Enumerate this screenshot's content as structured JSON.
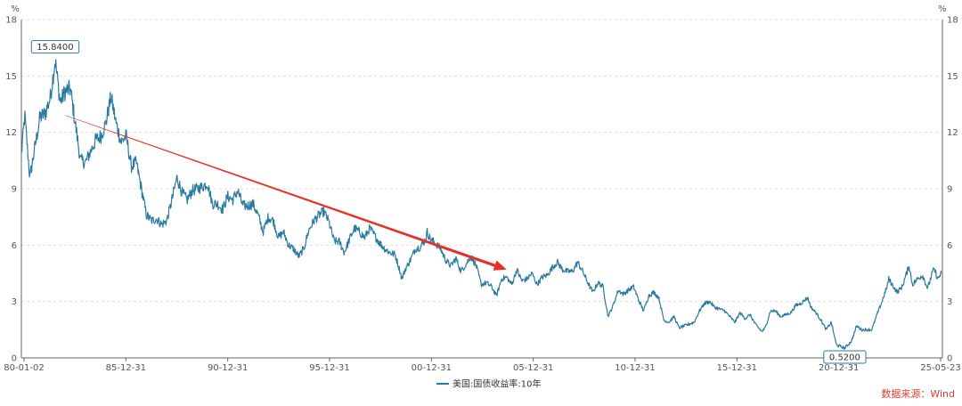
{
  "colors": {
    "series": "#2a7aa0",
    "arrow": "#e8302a",
    "grid": "#d9d9d9",
    "axis": "#666666",
    "source": "#e23b2e"
  },
  "chart_data": {
    "type": "line",
    "ylabel_left": "%",
    "ylabel_right": "%",
    "ylim": [
      0,
      18
    ],
    "y_ticks": [
      "0",
      "3",
      "6",
      "9",
      "12",
      "15",
      "18"
    ],
    "x_ticks": [
      "80-01-02",
      "85-12-31",
      "90-12-31",
      "95-12-31",
      "00-12-31",
      "05-12-31",
      "10-12-31",
      "15-12-31",
      "20-12-31",
      "25-05-23"
    ],
    "grid": true,
    "legend_position": "bottom",
    "annotations": [
      {
        "label": "15.8400",
        "x": "1981-09",
        "y": 15.84
      },
      {
        "label": "0.5200",
        "x": "2020-08",
        "y": 0.52
      }
    ],
    "trend_arrow": {
      "from": {
        "x": "1982-03",
        "y": 12.9
      },
      "to": {
        "x": "2003-12",
        "y": 4.7
      }
    },
    "series": [
      {
        "name": "美国:国债收益率:10年",
        "points": [
          [
            "1980-01",
            10.8
          ],
          [
            "1980-03",
            12.9
          ],
          [
            "1980-06",
            9.6
          ],
          [
            "1980-09",
            11.2
          ],
          [
            "1980-12",
            12.8
          ],
          [
            "1981-03",
            13.0
          ],
          [
            "1981-06",
            13.8
          ],
          [
            "1981-09",
            15.84
          ],
          [
            "1981-12",
            13.6
          ],
          [
            "1982-03",
            14.2
          ],
          [
            "1982-06",
            14.3
          ],
          [
            "1982-09",
            12.4
          ],
          [
            "1982-12",
            10.5
          ],
          [
            "1983-03",
            10.4
          ],
          [
            "1983-06",
            11.0
          ],
          [
            "1983-09",
            11.6
          ],
          [
            "1983-12",
            11.8
          ],
          [
            "1984-03",
            12.5
          ],
          [
            "1984-06",
            13.9
          ],
          [
            "1984-09",
            12.5
          ],
          [
            "1984-12",
            11.5
          ],
          [
            "1985-03",
            11.8
          ],
          [
            "1985-06",
            10.2
          ],
          [
            "1985-09",
            10.4
          ],
          [
            "1985-12",
            9.0
          ],
          [
            "1986-03",
            7.6
          ],
          [
            "1986-06",
            7.3
          ],
          [
            "1986-09",
            7.4
          ],
          [
            "1986-12",
            7.1
          ],
          [
            "1987-03",
            7.3
          ],
          [
            "1987-06",
            8.4
          ],
          [
            "1987-09",
            9.6
          ],
          [
            "1987-12",
            8.8
          ],
          [
            "1988-03",
            8.4
          ],
          [
            "1988-06",
            8.9
          ],
          [
            "1988-09",
            9.0
          ],
          [
            "1988-12",
            9.1
          ],
          [
            "1989-03",
            9.3
          ],
          [
            "1989-06",
            8.2
          ],
          [
            "1989-09",
            8.2
          ],
          [
            "1989-12",
            7.9
          ],
          [
            "1990-03",
            8.6
          ],
          [
            "1990-06",
            8.4
          ],
          [
            "1990-09",
            8.9
          ],
          [
            "1990-12",
            8.1
          ],
          [
            "1991-03",
            8.1
          ],
          [
            "1991-06",
            8.2
          ],
          [
            "1991-09",
            7.6
          ],
          [
            "1991-12",
            6.7
          ],
          [
            "1992-03",
            7.5
          ],
          [
            "1992-06",
            7.3
          ],
          [
            "1992-09",
            6.4
          ],
          [
            "1992-12",
            6.7
          ],
          [
            "1993-03",
            6.0
          ],
          [
            "1993-06",
            5.8
          ],
          [
            "1993-09",
            5.4
          ],
          [
            "1993-12",
            5.8
          ],
          [
            "1994-03",
            6.8
          ],
          [
            "1994-06",
            7.3
          ],
          [
            "1994-09",
            7.6
          ],
          [
            "1994-12",
            7.8
          ],
          [
            "1995-03",
            7.2
          ],
          [
            "1995-06",
            6.2
          ],
          [
            "1995-09",
            6.2
          ],
          [
            "1995-12",
            5.6
          ],
          [
            "1996-03",
            6.3
          ],
          [
            "1996-06",
            6.9
          ],
          [
            "1996-09",
            6.7
          ],
          [
            "1996-12",
            6.4
          ],
          [
            "1997-03",
            6.9
          ],
          [
            "1997-06",
            6.5
          ],
          [
            "1997-09",
            6.1
          ],
          [
            "1997-12",
            5.8
          ],
          [
            "1998-03",
            5.6
          ],
          [
            "1998-06",
            5.5
          ],
          [
            "1998-09",
            4.6
          ],
          [
            "1998-10",
            4.2
          ],
          [
            "1998-12",
            4.7
          ],
          [
            "1999-03",
            5.2
          ],
          [
            "1999-06",
            5.8
          ],
          [
            "1999-09",
            5.9
          ],
          [
            "1999-12",
            6.3
          ],
          [
            "2000-01",
            6.7
          ],
          [
            "2000-03",
            6.3
          ],
          [
            "2000-06",
            6.1
          ],
          [
            "2000-09",
            5.8
          ],
          [
            "2000-12",
            5.2
          ],
          [
            "2001-03",
            4.9
          ],
          [
            "2001-06",
            5.3
          ],
          [
            "2001-09",
            4.6
          ],
          [
            "2001-12",
            5.0
          ],
          [
            "2002-03",
            5.4
          ],
          [
            "2002-06",
            4.9
          ],
          [
            "2002-09",
            3.9
          ],
          [
            "2002-12",
            4.0
          ],
          [
            "2003-03",
            3.8
          ],
          [
            "2003-06",
            3.3
          ],
          [
            "2003-09",
            4.2
          ],
          [
            "2003-12",
            4.3
          ],
          [
            "2004-03",
            3.9
          ],
          [
            "2004-06",
            4.7
          ],
          [
            "2004-09",
            4.1
          ],
          [
            "2004-12",
            4.2
          ],
          [
            "2005-03",
            4.5
          ],
          [
            "2005-06",
            3.9
          ],
          [
            "2005-09",
            4.3
          ],
          [
            "2005-12",
            4.4
          ],
          [
            "2006-03",
            4.8
          ],
          [
            "2006-06",
            5.1
          ],
          [
            "2006-09",
            4.7
          ],
          [
            "2006-12",
            4.6
          ],
          [
            "2007-03",
            4.6
          ],
          [
            "2007-06",
            5.1
          ],
          [
            "2007-09",
            4.6
          ],
          [
            "2007-12",
            4.0
          ],
          [
            "2008-03",
            3.5
          ],
          [
            "2008-06",
            4.0
          ],
          [
            "2008-09",
            3.8
          ],
          [
            "2008-12",
            2.2
          ],
          [
            "2009-03",
            2.8
          ],
          [
            "2009-06",
            3.6
          ],
          [
            "2009-09",
            3.4
          ],
          [
            "2009-12",
            3.6
          ],
          [
            "2010-03",
            3.8
          ],
          [
            "2010-06",
            3.1
          ],
          [
            "2010-09",
            2.5
          ],
          [
            "2010-12",
            3.3
          ],
          [
            "2011-03",
            3.5
          ],
          [
            "2011-06",
            3.2
          ],
          [
            "2011-09",
            2.0
          ],
          [
            "2011-12",
            1.9
          ],
          [
            "2012-03",
            2.2
          ],
          [
            "2012-06",
            1.6
          ],
          [
            "2012-09",
            1.7
          ],
          [
            "2012-12",
            1.8
          ],
          [
            "2013-03",
            1.9
          ],
          [
            "2013-06",
            2.5
          ],
          [
            "2013-09",
            2.9
          ],
          [
            "2013-12",
            3.0
          ],
          [
            "2014-03",
            2.7
          ],
          [
            "2014-06",
            2.6
          ],
          [
            "2014-09",
            2.5
          ],
          [
            "2014-12",
            2.2
          ],
          [
            "2015-03",
            1.9
          ],
          [
            "2015-06",
            2.4
          ],
          [
            "2015-09",
            2.1
          ],
          [
            "2015-12",
            2.3
          ],
          [
            "2016-03",
            1.8
          ],
          [
            "2016-07",
            1.4
          ],
          [
            "2016-09",
            1.6
          ],
          [
            "2016-12",
            2.5
          ],
          [
            "2017-03",
            2.5
          ],
          [
            "2017-06",
            2.2
          ],
          [
            "2017-09",
            2.3
          ],
          [
            "2017-12",
            2.4
          ],
          [
            "2018-03",
            2.8
          ],
          [
            "2018-06",
            2.9
          ],
          [
            "2018-10",
            3.2
          ],
          [
            "2018-12",
            2.7
          ],
          [
            "2019-03",
            2.4
          ],
          [
            "2019-06",
            2.0
          ],
          [
            "2019-09",
            1.5
          ],
          [
            "2019-12",
            1.9
          ],
          [
            "2020-03",
            0.7
          ],
          [
            "2020-08",
            0.52
          ],
          [
            "2020-12",
            0.9
          ],
          [
            "2021-03",
            1.7
          ],
          [
            "2021-06",
            1.5
          ],
          [
            "2021-09",
            1.5
          ],
          [
            "2021-12",
            1.5
          ],
          [
            "2022-03",
            2.3
          ],
          [
            "2022-06",
            3.0
          ],
          [
            "2022-09",
            3.8
          ],
          [
            "2022-10",
            4.2
          ],
          [
            "2022-12",
            3.9
          ],
          [
            "2023-03",
            3.5
          ],
          [
            "2023-06",
            3.8
          ],
          [
            "2023-10",
            4.9
          ],
          [
            "2023-12",
            3.9
          ],
          [
            "2024-03",
            4.2
          ],
          [
            "2024-06",
            4.4
          ],
          [
            "2024-09",
            3.7
          ],
          [
            "2024-12",
            4.6
          ],
          [
            "2025-01",
            4.7
          ],
          [
            "2025-03",
            4.2
          ],
          [
            "2025-05",
            4.5
          ]
        ]
      }
    ]
  },
  "footer": {
    "source": "数据来源：Wind"
  }
}
